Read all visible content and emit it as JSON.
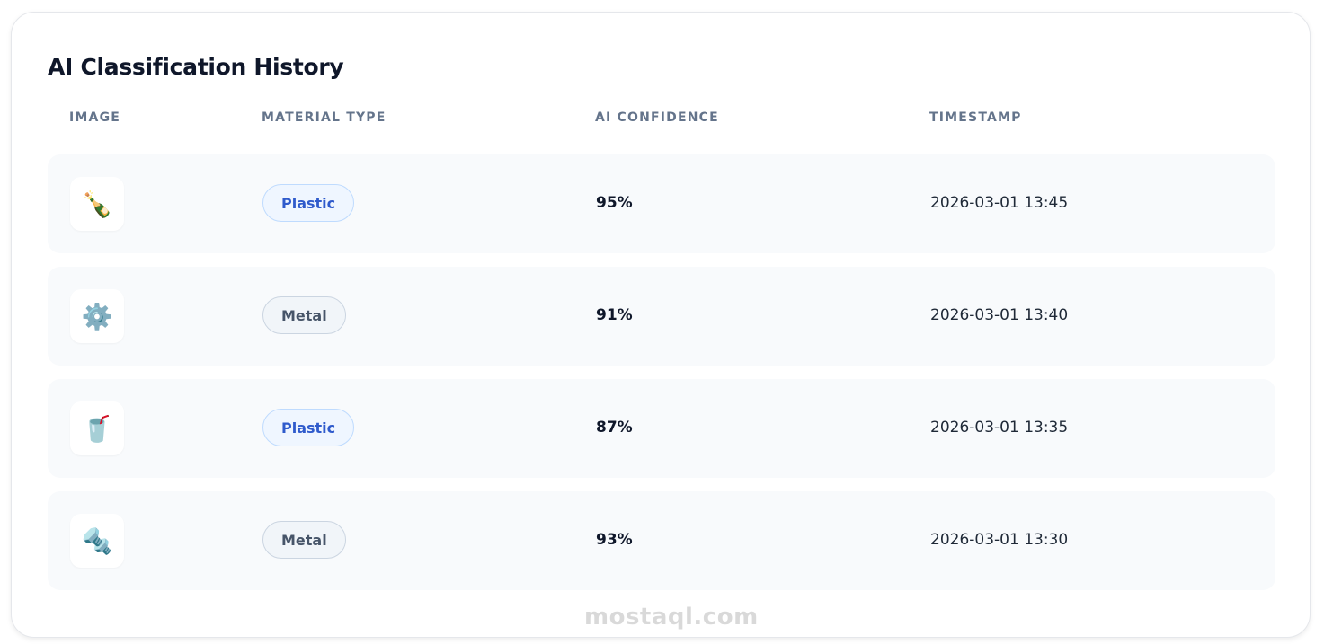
{
  "title": "AI Classification History",
  "columns": [
    "Image",
    "Material Type",
    "AI Confidence",
    "Timestamp"
  ],
  "rows": [
    {
      "icon": "🍾",
      "icon_name": "bottle-icon",
      "material": "Plastic",
      "kind": "plastic",
      "confidence": "95%",
      "timestamp": "2026-03-01 13:45"
    },
    {
      "icon": "⚙️",
      "icon_name": "gear-icon",
      "material": "Metal",
      "kind": "metal",
      "confidence": "91%",
      "timestamp": "2026-03-01 13:40"
    },
    {
      "icon": "🥤",
      "icon_name": "cup-with-straw-icon",
      "material": "Plastic",
      "kind": "plastic",
      "confidence": "87%",
      "timestamp": "2026-03-01 13:35"
    },
    {
      "icon": "🔩",
      "icon_name": "nut-and-bolt-icon",
      "material": "Metal",
      "kind": "metal",
      "confidence": "93%",
      "timestamp": "2026-03-01 13:30"
    }
  ],
  "colors": {
    "plastic_badge_text": "#2f5bcc",
    "metal_badge_text": "#475569",
    "row_bg": "#f8fafc"
  },
  "watermark": "mostaql.com"
}
